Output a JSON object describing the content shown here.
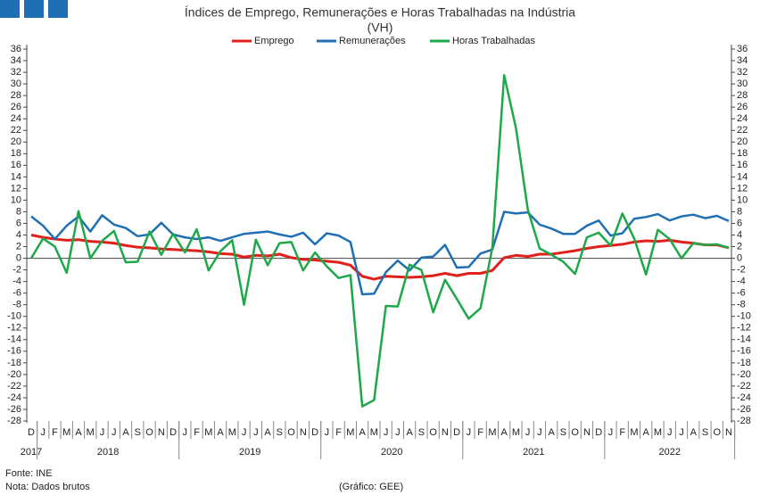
{
  "chart_data": {
    "type": "line",
    "title": "Índices de Emprego, Remunerações e Horas Trabalhadas na Indústria",
    "subtitle": "(VH)",
    "categories": [
      "D",
      "J",
      "F",
      "M",
      "A",
      "M",
      "J",
      "J",
      "A",
      "S",
      "O",
      "N",
      "D",
      "J",
      "F",
      "M",
      "A",
      "M",
      "J",
      "J",
      "A",
      "S",
      "O",
      "N",
      "D",
      "J",
      "F",
      "M",
      "A",
      "M",
      "J",
      "J",
      "A",
      "S",
      "O",
      "N",
      "D",
      "J",
      "F",
      "M",
      "A",
      "M",
      "J",
      "J",
      "A",
      "S",
      "O",
      "N",
      "D",
      "J",
      "F",
      "M",
      "A",
      "M",
      "J",
      "J",
      "A",
      "S",
      "O",
      "N"
    ],
    "year_groups": [
      {
        "label": "2017",
        "span": 1
      },
      {
        "label": "2018",
        "span": 12
      },
      {
        "label": "2019",
        "span": 12
      },
      {
        "label": "2020",
        "span": 12
      },
      {
        "label": "2021",
        "span": 12
      },
      {
        "label": "2022",
        "span": 11
      }
    ],
    "series": [
      {
        "name": "Emprego",
        "color": "#e0201b",
        "width": 3,
        "values": [
          4.0,
          3.6,
          3.3,
          3.1,
          3.2,
          2.9,
          2.8,
          2.6,
          2.2,
          1.9,
          1.8,
          1.6,
          1.5,
          1.4,
          1.3,
          1.1,
          0.8,
          0.7,
          0.2,
          0.5,
          0.4,
          0.7,
          0.1,
          -0.2,
          -0.3,
          -0.5,
          -0.7,
          -1.2,
          -3.1,
          -3.6,
          -3.1,
          -3.2,
          -3.3,
          -3.2,
          -3.0,
          -2.6,
          -3.0,
          -2.6,
          -2.6,
          -2.1,
          0.1,
          0.5,
          0.3,
          0.7,
          0.7,
          1.0,
          1.3,
          1.7,
          2.0,
          2.2,
          2.4,
          2.8,
          3.0,
          2.9,
          3.1,
          2.8,
          2.6,
          2.3,
          2.3,
          1.8
        ]
      },
      {
        "name": "Remunerações",
        "color": "#1f6fb5",
        "width": 2.5,
        "values": [
          7.2,
          5.6,
          3.3,
          5.6,
          7.2,
          4.6,
          7.4,
          5.8,
          5.2,
          3.8,
          4.1,
          6.1,
          4.1,
          3.6,
          3.3,
          3.6,
          3.0,
          3.6,
          4.2,
          4.4,
          4.6,
          4.1,
          3.7,
          4.4,
          2.4,
          4.3,
          3.9,
          2.8,
          -6.2,
          -6.1,
          -2.4,
          -0.4,
          -2.1,
          0.1,
          0.3,
          2.3,
          -1.6,
          -1.5,
          0.8,
          1.5,
          8.0,
          7.7,
          7.9,
          5.8,
          5.1,
          4.2,
          4.2,
          5.6,
          6.5,
          3.9,
          4.3,
          6.8,
          7.1,
          7.6,
          6.5,
          7.2,
          7.5,
          6.9,
          7.3,
          6.4
        ]
      },
      {
        "name": "Horas Trabalhadas",
        "color": "#1fa84a",
        "width": 2.5,
        "values": [
          0.0,
          3.4,
          2.0,
          -2.5,
          8.1,
          0.0,
          3.0,
          4.7,
          -0.7,
          -0.6,
          4.6,
          0.6,
          4.2,
          1.0,
          5.0,
          -2.1,
          1.2,
          3.1,
          -8.0,
          3.2,
          -1.2,
          2.6,
          2.8,
          -2.1,
          1.0,
          -1.4,
          -3.4,
          -2.9,
          -25.5,
          -24.4,
          -8.2,
          -8.3,
          -1.1,
          -2.0,
          -9.3,
          -3.7,
          -7.0,
          -10.4,
          -8.6,
          1.8,
          31.5,
          22.4,
          8.4,
          1.7,
          0.6,
          -0.6,
          -2.7,
          3.6,
          4.4,
          2.2,
          7.7,
          3.4,
          -2.8,
          4.9,
          3.3,
          0.0,
          2.6,
          2.3,
          2.4,
          1.8
        ]
      }
    ],
    "ylim": [
      -28,
      36
    ],
    "yticks": [
      -28,
      -26,
      -24,
      -22,
      -20,
      -18,
      -16,
      -14,
      -12,
      -10,
      -8,
      -6,
      -4,
      -2,
      0,
      2,
      4,
      6,
      8,
      10,
      12,
      14,
      16,
      18,
      20,
      22,
      24,
      26,
      28,
      30,
      32,
      34,
      36
    ],
    "grid": false,
    "legend": "top",
    "footnotes": [
      "Fonte: INE",
      "Nota: Dados brutos"
    ],
    "credit": "(Gráfico: GEE)"
  }
}
